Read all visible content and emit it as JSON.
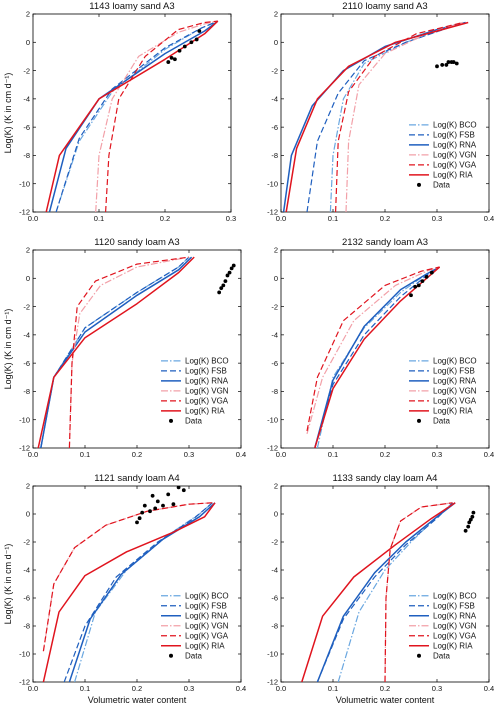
{
  "colors": {
    "blue": "#1f5fbf",
    "lightblue": "#6aa7e0",
    "red": "#e0141e",
    "pink": "#f2a0a8",
    "black": "#000000"
  },
  "legend": [
    "Log(K) BCO",
    "Log(K) FSB",
    "Log(K) RNA",
    "Log(K) VGN",
    "Log(K) VGA",
    "Log(K) RIA",
    "Data"
  ],
  "y_axis_label": "Log(K) (K in cm d⁻¹)",
  "x_axis_label": "Volumetric water content",
  "chart_data": [
    {
      "type": "line",
      "title": "1143 loamy sand A3",
      "xlabel": "",
      "ylabel": "Log(K) (K in cm d⁻¹)",
      "xlim": [
        0,
        0.3
      ],
      "ylim": [
        -12,
        2
      ],
      "xticks": [
        "0.0",
        "0.1",
        "0.2",
        "0.3"
      ],
      "yticks": [
        "-12",
        "-10",
        "-8",
        "-6",
        "-4",
        "-2",
        "0",
        "2"
      ],
      "legend_position": "none",
      "series": [
        {
          "name": "Log(K) BCO",
          "x": [
            0.035,
            0.07,
            0.12,
            0.2,
            0.255,
            0.28
          ],
          "y": [
            -12,
            -7,
            -3.5,
            -0.5,
            1,
            1.5
          ]
        },
        {
          "name": "Log(K) FSB",
          "x": [
            0.035,
            0.07,
            0.12,
            0.2,
            0.255,
            0.28
          ],
          "y": [
            -12,
            -6.8,
            -3.3,
            -0.4,
            1,
            1.5
          ]
        },
        {
          "name": "Log(K) RNA",
          "x": [
            0.025,
            0.05,
            0.1,
            0.2,
            0.26,
            0.28
          ],
          "y": [
            -12,
            -7.5,
            -4,
            -0.8,
            0.8,
            1.5
          ]
        },
        {
          "name": "Log(K) VGN",
          "x": [
            0.095,
            0.1,
            0.12,
            0.16,
            0.22,
            0.26,
            0.28
          ],
          "y": [
            -12,
            -8,
            -4,
            -1,
            0.7,
            1.3,
            1.5
          ]
        },
        {
          "name": "Log(K) VGA",
          "x": [
            0.11,
            0.115,
            0.13,
            0.17,
            0.22,
            0.26,
            0.28
          ],
          "y": [
            -12,
            -8,
            -4,
            -1,
            0.9,
            1.4,
            1.5
          ]
        },
        {
          "name": "Log(K) RIA",
          "x": [
            0.02,
            0.04,
            0.1,
            0.2,
            0.26,
            0.28
          ],
          "y": [
            -12,
            -8,
            -4,
            -1.2,
            0.6,
            1.5
          ]
        },
        {
          "name": "Data",
          "x": [
            0.205,
            0.21,
            0.215,
            0.222,
            0.23,
            0.24,
            0.248,
            0.252
          ],
          "y": [
            -1.4,
            -1.1,
            -1.2,
            -0.6,
            -0.3,
            0.0,
            0.2,
            0.8
          ]
        }
      ]
    },
    {
      "type": "line",
      "title": "2110 loamy sand A3",
      "xlabel": "",
      "ylabel": "",
      "xlim": [
        0,
        0.4
      ],
      "ylim": [
        -12,
        2
      ],
      "xticks": [
        "0.0",
        "0.1",
        "0.2",
        "0.3",
        "0.4"
      ],
      "yticks": [
        "-12",
        "-10",
        "-8",
        "-6",
        "-4",
        "-2",
        "0",
        "2"
      ],
      "legend_position": "right",
      "series": [
        {
          "name": "Log(K) BCO",
          "x": [
            0.095,
            0.1,
            0.12,
            0.16,
            0.24,
            0.32,
            0.35
          ],
          "y": [
            -12,
            -8,
            -4,
            -1.5,
            0,
            1,
            1.4
          ]
        },
        {
          "name": "Log(K) FSB",
          "x": [
            0.05,
            0.07,
            0.11,
            0.16,
            0.24,
            0.32,
            0.35
          ],
          "y": [
            -12,
            -7,
            -3.6,
            -1.3,
            0,
            1,
            1.4
          ]
        },
        {
          "name": "Log(K) RNA",
          "x": [
            0.005,
            0.02,
            0.06,
            0.12,
            0.2,
            0.3,
            0.355
          ],
          "y": [
            -12,
            -8,
            -4.5,
            -2,
            -0.3,
            0.9,
            1.4
          ]
        },
        {
          "name": "Log(K) VGN",
          "x": [
            0.125,
            0.13,
            0.15,
            0.2,
            0.28,
            0.35
          ],
          "y": [
            -12,
            -7,
            -3,
            -0.8,
            0.6,
            1.4
          ]
        },
        {
          "name": "Log(K) VGA",
          "x": [
            0.105,
            0.11,
            0.13,
            0.18,
            0.26,
            0.35
          ],
          "y": [
            -12,
            -7,
            -3.5,
            -1,
            0.6,
            1.4
          ]
        },
        {
          "name": "Log(K) RIA",
          "x": [
            0.01,
            0.03,
            0.07,
            0.13,
            0.22,
            0.31,
            0.36
          ],
          "y": [
            -12,
            -7.5,
            -4,
            -1.7,
            0,
            0.9,
            1.4
          ]
        },
        {
          "name": "Data",
          "x": [
            0.3,
            0.31,
            0.318,
            0.322,
            0.328,
            0.332,
            0.338
          ],
          "y": [
            -1.7,
            -1.6,
            -1.6,
            -1.4,
            -1.4,
            -1.4,
            -1.5
          ]
        }
      ]
    },
    {
      "type": "line",
      "title": "1120 sandy loam A3",
      "xlabel": "",
      "ylabel": "Log(K) (K in cm d⁻¹)",
      "xlim": [
        0,
        0.4
      ],
      "ylim": [
        -12,
        2
      ],
      "xticks": [
        "0.0",
        "0.1",
        "0.2",
        "0.3",
        "0.4"
      ],
      "yticks": [
        "-12",
        "-10",
        "-8",
        "-6",
        "-4",
        "-2",
        "0",
        "2"
      ],
      "legend_position": "right",
      "series": [
        {
          "name": "Log(K) BCO",
          "x": [
            0.015,
            0.04,
            0.1,
            0.2,
            0.28,
            0.3
          ],
          "y": [
            -12,
            -7,
            -3.5,
            -1,
            0.8,
            1.5
          ]
        },
        {
          "name": "Log(K) FSB",
          "x": [
            0.015,
            0.04,
            0.1,
            0.2,
            0.28,
            0.3
          ],
          "y": [
            -12,
            -7,
            -3.5,
            -1,
            0.8,
            1.5
          ]
        },
        {
          "name": "Log(K) RNA",
          "x": [
            0.015,
            0.04,
            0.1,
            0.2,
            0.28,
            0.305
          ],
          "y": [
            -12,
            -7,
            -3.8,
            -1.2,
            0.6,
            1.5
          ]
        },
        {
          "name": "Log(K) VGN",
          "x": [
            0.07,
            0.075,
            0.09,
            0.13,
            0.2,
            0.3
          ],
          "y": [
            -12,
            -6,
            -2.5,
            -0.5,
            0.8,
            1.5
          ]
        },
        {
          "name": "Log(K) VGA",
          "x": [
            0.07,
            0.075,
            0.085,
            0.12,
            0.2,
            0.3
          ],
          "y": [
            -12,
            -6,
            -2,
            -0.2,
            1,
            1.5
          ]
        },
        {
          "name": "Log(K) RIA",
          "x": [
            0.01,
            0.04,
            0.1,
            0.2,
            0.28,
            0.31
          ],
          "y": [
            -12,
            -7,
            -4.2,
            -1.8,
            0.4,
            1.5
          ]
        },
        {
          "name": "Data",
          "x": [
            0.358,
            0.362,
            0.366,
            0.37,
            0.374,
            0.378,
            0.382,
            0.386
          ],
          "y": [
            -1.0,
            -0.7,
            -0.5,
            -0.2,
            0.2,
            0.4,
            0.7,
            0.9
          ]
        }
      ]
    },
    {
      "type": "line",
      "title": "2132 sandy loam A3",
      "xlabel": "",
      "ylabel": "",
      "xlim": [
        0,
        0.4
      ],
      "ylim": [
        -12,
        2
      ],
      "xticks": [
        "0.0",
        "0.1",
        "0.2",
        "0.3",
        "0.4"
      ],
      "yticks": [
        "-12",
        "-10",
        "-8",
        "-6",
        "-4",
        "-2",
        "0",
        "2"
      ],
      "legend_position": "right",
      "series": [
        {
          "name": "Log(K) BCO",
          "x": [
            0.07,
            0.1,
            0.16,
            0.23,
            0.28,
            0.305
          ],
          "y": [
            -12,
            -7,
            -3.5,
            -1,
            0.3,
            0.8
          ]
        },
        {
          "name": "Log(K) FSB",
          "x": [
            0.065,
            0.1,
            0.16,
            0.23,
            0.28,
            0.305
          ],
          "y": [
            -12,
            -7.5,
            -4,
            -1.3,
            0.2,
            0.8
          ]
        },
        {
          "name": "Log(K) RNA",
          "x": [
            0.065,
            0.1,
            0.16,
            0.23,
            0.28,
            0.305
          ],
          "y": [
            -12,
            -7.2,
            -3.4,
            -0.8,
            0.3,
            0.8
          ]
        },
        {
          "name": "Log(K) VGN",
          "x": [
            0.05,
            0.08,
            0.14,
            0.22,
            0.28,
            0.305
          ],
          "y": [
            -11,
            -7,
            -3,
            -0.5,
            0.5,
            0.8
          ]
        },
        {
          "name": "Log(K) VGA",
          "x": [
            0.05,
            0.07,
            0.12,
            0.2,
            0.27,
            0.305
          ],
          "y": [
            -10.8,
            -7,
            -3,
            -0.5,
            0.5,
            0.8
          ]
        },
        {
          "name": "Log(K) RIA",
          "x": [
            0.065,
            0.1,
            0.16,
            0.23,
            0.28,
            0.305
          ],
          "y": [
            -12,
            -7.8,
            -4.3,
            -1.6,
            0,
            0.8
          ]
        },
        {
          "name": "Data",
          "x": [
            0.25,
            0.258,
            0.265,
            0.272,
            0.28,
            0.29
          ],
          "y": [
            -1.2,
            -0.6,
            -0.5,
            -0.2,
            0.1,
            0.4
          ]
        }
      ]
    },
    {
      "type": "line",
      "title": "1121 sandy loam A4",
      "xlabel": "Volumetric water content",
      "ylabel": "Log(K) (K in cm d⁻¹)",
      "xlim": [
        0,
        0.4
      ],
      "ylim": [
        -12,
        2
      ],
      "xticks": [
        "0.0",
        "0.1",
        "0.2",
        "0.3",
        "0.4"
      ],
      "yticks": [
        "-12",
        "-10",
        "-8",
        "-6",
        "-4",
        "-2",
        "0",
        "2"
      ],
      "legend_position": "right",
      "series": [
        {
          "name": "Log(K) BCO",
          "x": [
            0.08,
            0.12,
            0.18,
            0.26,
            0.32,
            0.345
          ],
          "y": [
            -12,
            -7,
            -4,
            -1.5,
            0,
            0.8
          ]
        },
        {
          "name": "Log(K) FSB",
          "x": [
            0.06,
            0.1,
            0.16,
            0.24,
            0.31,
            0.345
          ],
          "y": [
            -12,
            -8,
            -4.5,
            -2,
            -0.3,
            0.8
          ]
        },
        {
          "name": "Log(K) RNA",
          "x": [
            0.07,
            0.11,
            0.17,
            0.25,
            0.32,
            0.35
          ],
          "y": [
            -12,
            -7.5,
            -4.3,
            -1.8,
            -0.2,
            0.8
          ]
        },
        {
          "name": "Log(K) VGN",
          "x": [
            0.02,
            0.04,
            0.08,
            0.14,
            0.22,
            0.3,
            0.345
          ],
          "y": [
            -9.8,
            -5,
            -2.4,
            -0.8,
            0.2,
            0.7,
            0.8
          ]
        },
        {
          "name": "Log(K) VGA",
          "x": [
            0.02,
            0.04,
            0.08,
            0.14,
            0.22,
            0.3,
            0.345
          ],
          "y": [
            -9.8,
            -5,
            -2.4,
            -0.8,
            0.2,
            0.7,
            0.8
          ]
        },
        {
          "name": "Log(K) RIA",
          "x": [
            0.02,
            0.05,
            0.1,
            0.18,
            0.27,
            0.33,
            0.35
          ],
          "y": [
            -12,
            -7,
            -4.4,
            -2.7,
            -1.3,
            -0.2,
            0.8
          ]
        },
        {
          "name": "Data",
          "x": [
            0.2,
            0.205,
            0.21,
            0.215,
            0.225,
            0.23,
            0.235,
            0.24,
            0.25,
            0.26,
            0.27,
            0.28,
            0.29
          ],
          "y": [
            -0.6,
            -0.3,
            0.1,
            0.6,
            0.2,
            1.3,
            0.4,
            0.9,
            0.6,
            1.4,
            0.7,
            1.9,
            1.7
          ]
        }
      ]
    },
    {
      "type": "line",
      "title": "1133 sandy clay loam A4",
      "xlabel": "Volumetric water content",
      "ylabel": "",
      "xlim": [
        0,
        0.4
      ],
      "ylim": [
        -12,
        2
      ],
      "xticks": [
        "0.0",
        "0.1",
        "0.2",
        "0.3",
        "0.4"
      ],
      "yticks": [
        "-12",
        "-10",
        "-8",
        "-6",
        "-4",
        "-2",
        "0",
        "2"
      ],
      "legend_position": "right",
      "series": [
        {
          "name": "Log(K) BCO",
          "x": [
            0.11,
            0.15,
            0.2,
            0.25,
            0.3,
            0.33
          ],
          "y": [
            -12,
            -7,
            -4,
            -2,
            -0.2,
            0.8
          ]
        },
        {
          "name": "Log(K) FSB",
          "x": [
            0.07,
            0.12,
            0.18,
            0.24,
            0.3,
            0.33
          ],
          "y": [
            -12,
            -7.5,
            -4.5,
            -2.2,
            -0.3,
            0.8
          ]
        },
        {
          "name": "Log(K) RNA",
          "x": [
            0.07,
            0.12,
            0.18,
            0.24,
            0.3,
            0.335
          ],
          "y": [
            -12,
            -7.3,
            -4.2,
            -2,
            -0.2,
            0.8
          ]
        },
        {
          "name": "Log(K) VGN",
          "x": [
            0.2,
            0.202,
            0.21,
            0.23,
            0.27,
            0.33
          ],
          "y": [
            -12,
            -6,
            -2.5,
            -0.5,
            0.5,
            0.8
          ]
        },
        {
          "name": "Log(K) VGA",
          "x": [
            0.2,
            0.202,
            0.21,
            0.23,
            0.27,
            0.33
          ],
          "y": [
            -12,
            -6,
            -2.5,
            -0.5,
            0.5,
            0.8
          ]
        },
        {
          "name": "Log(K) RIA",
          "x": [
            0.04,
            0.08,
            0.14,
            0.22,
            0.29,
            0.335
          ],
          "y": [
            -12,
            -7.3,
            -4.5,
            -2.2,
            -0.3,
            0.8
          ]
        },
        {
          "name": "Data",
          "x": [
            0.355,
            0.36,
            0.362,
            0.365,
            0.368,
            0.37
          ],
          "y": [
            -1.2,
            -0.9,
            -0.6,
            -0.4,
            -0.2,
            0.1
          ]
        }
      ]
    }
  ]
}
